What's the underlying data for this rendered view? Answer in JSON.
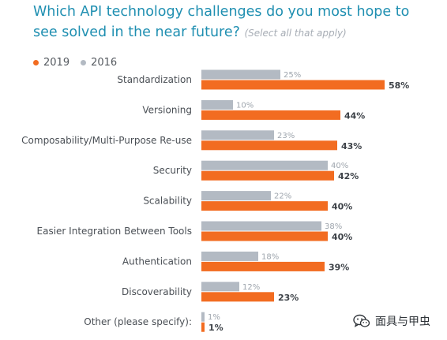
{
  "header": {
    "title": "Which API technology challenges do you most hope to see solved in the near future?",
    "subtitle": "(Select all that apply)"
  },
  "colors": {
    "title": "#1f8fb1",
    "series_2019": "#f26c21",
    "series_2016": "#b3bac3"
  },
  "legend": [
    {
      "label": "2019",
      "color": "#f26c21"
    },
    {
      "label": "2016",
      "color": "#b3bac3"
    }
  ],
  "chart_data": {
    "type": "bar",
    "orientation": "horizontal",
    "categories": [
      "Standardization",
      "Versioning",
      "Composability/Multi-Purpose Re-use",
      "Security",
      "Scalability",
      "Easier Integration Between Tools",
      "Authentication",
      "Discoverability",
      "Other (please specify):"
    ],
    "series": [
      {
        "name": "2016",
        "color": "#b3bac3",
        "values": [
          25,
          10,
          23,
          40,
          22,
          38,
          18,
          12,
          1
        ]
      },
      {
        "name": "2019",
        "color": "#f26c21",
        "values": [
          58,
          44,
          43,
          42,
          40,
          40,
          39,
          23,
          1
        ]
      }
    ],
    "value_suffix": "%",
    "legend_position": "top-left",
    "grid": false
  },
  "watermark": {
    "text": "面具与甲虫",
    "icon": "wechat-icon"
  }
}
